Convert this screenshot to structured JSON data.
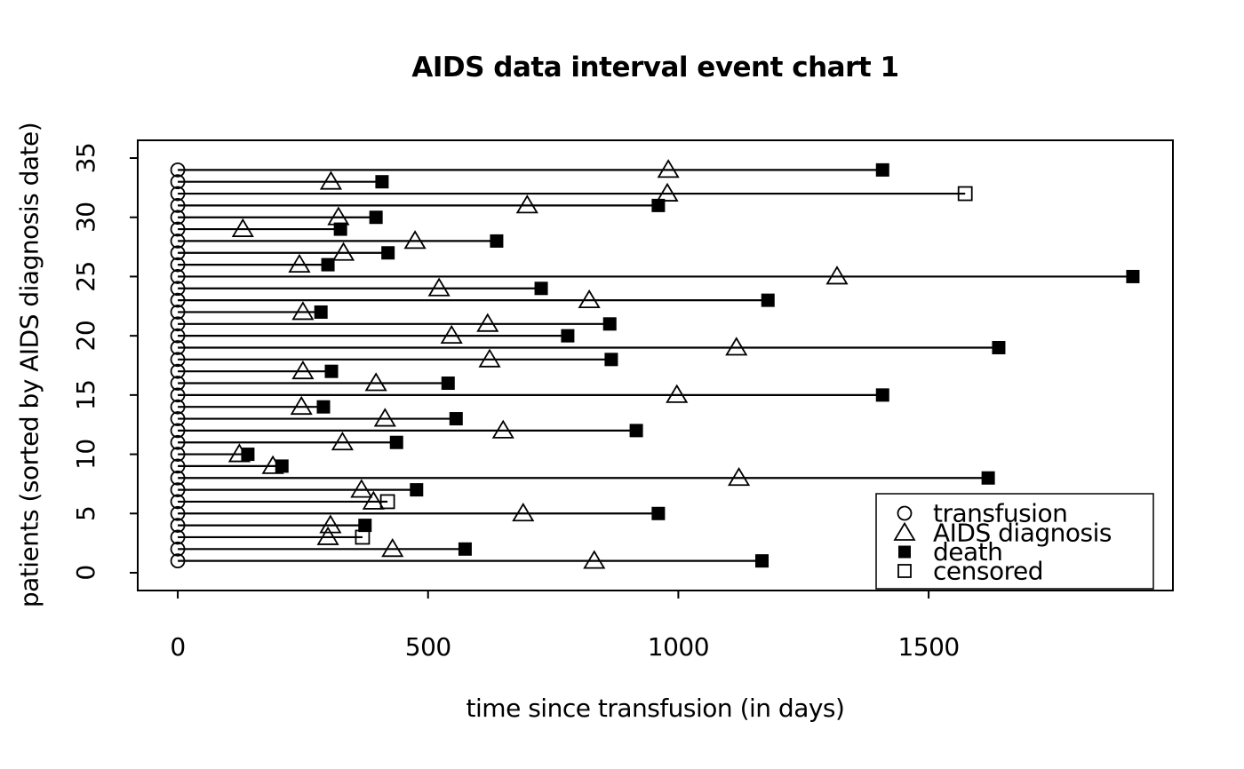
{
  "title": "AIDS data interval event chart 1",
  "axes": {
    "x_label": "time since transfusion (in days)",
    "y_label": "patients (sorted by AIDS diagnosis date)",
    "x_ticks": [
      0,
      500,
      1000,
      1500
    ],
    "y_ticks": [
      0,
      5,
      10,
      15,
      20,
      25,
      30,
      35
    ]
  },
  "legend": {
    "position": "bottom-right-inside",
    "items": [
      {
        "marker": "open-circle",
        "label": "transfusion"
      },
      {
        "marker": "open-triangle",
        "label": "AIDS diagnosis"
      },
      {
        "marker": "filled-square",
        "label": "death"
      },
      {
        "marker": "open-square",
        "label": "censored"
      }
    ]
  },
  "chart_data": {
    "type": "interval-event",
    "title": "AIDS data interval event chart 1",
    "xlabel": "time since transfusion (in days)",
    "ylabel": "patients (sorted by AIDS diagnosis date)",
    "x_range_days": [
      -80,
      1988
    ],
    "y_range": [
      -1.5,
      36.5
    ],
    "grid": false,
    "event_types": {
      "start": "transfusion",
      "middle": "AIDS diagnosis",
      "end_death": "death",
      "end_censored": "censored"
    },
    "patients": [
      {
        "id": 1,
        "transfusion": 0,
        "aids_diagnosis": 832,
        "end": 1167,
        "end_type": "death"
      },
      {
        "id": 2,
        "transfusion": 0,
        "aids_diagnosis": 429,
        "end": 574,
        "end_type": "death"
      },
      {
        "id": 3,
        "transfusion": 0,
        "aids_diagnosis": 300,
        "end": 369,
        "end_type": "censored"
      },
      {
        "id": 4,
        "transfusion": 0,
        "aids_diagnosis": 305,
        "end": 374,
        "end_type": "death"
      },
      {
        "id": 5,
        "transfusion": 0,
        "aids_diagnosis": 690,
        "end": 960,
        "end_type": "death"
      },
      {
        "id": 6,
        "transfusion": 0,
        "aids_diagnosis": 391,
        "end": 419,
        "end_type": "censored"
      },
      {
        "id": 7,
        "transfusion": 0,
        "aids_diagnosis": 367,
        "end": 477,
        "end_type": "death"
      },
      {
        "id": 8,
        "transfusion": 0,
        "aids_diagnosis": 1121,
        "end": 1619,
        "end_type": "death"
      },
      {
        "id": 9,
        "transfusion": 0,
        "aids_diagnosis": 190,
        "end": 208,
        "end_type": "death"
      },
      {
        "id": 10,
        "transfusion": 0,
        "aids_diagnosis": 123,
        "end": 140,
        "end_type": "death"
      },
      {
        "id": 11,
        "transfusion": 0,
        "aids_diagnosis": 329,
        "end": 437,
        "end_type": "death"
      },
      {
        "id": 12,
        "transfusion": 0,
        "aids_diagnosis": 650,
        "end": 916,
        "end_type": "death"
      },
      {
        "id": 13,
        "transfusion": 0,
        "aids_diagnosis": 414,
        "end": 556,
        "end_type": "death"
      },
      {
        "id": 14,
        "transfusion": 0,
        "aids_diagnosis": 247,
        "end": 291,
        "end_type": "death"
      },
      {
        "id": 15,
        "transfusion": 0,
        "aids_diagnosis": 997,
        "end": 1408,
        "end_type": "death"
      },
      {
        "id": 16,
        "transfusion": 0,
        "aids_diagnosis": 396,
        "end": 540,
        "end_type": "death"
      },
      {
        "id": 17,
        "transfusion": 0,
        "aids_diagnosis": 250,
        "end": 307,
        "end_type": "death"
      },
      {
        "id": 18,
        "transfusion": 0,
        "aids_diagnosis": 623,
        "end": 866,
        "end_type": "death"
      },
      {
        "id": 19,
        "transfusion": 0,
        "aids_diagnosis": 1116,
        "end": 1640,
        "end_type": "death"
      },
      {
        "id": 20,
        "transfusion": 0,
        "aids_diagnosis": 547,
        "end": 779,
        "end_type": "death"
      },
      {
        "id": 21,
        "transfusion": 0,
        "aids_diagnosis": 619,
        "end": 863,
        "end_type": "death"
      },
      {
        "id": 22,
        "transfusion": 0,
        "aids_diagnosis": 250,
        "end": 286,
        "end_type": "death"
      },
      {
        "id": 23,
        "transfusion": 0,
        "aids_diagnosis": 822,
        "end": 1179,
        "end_type": "death"
      },
      {
        "id": 24,
        "transfusion": 0,
        "aids_diagnosis": 522,
        "end": 726,
        "end_type": "death"
      },
      {
        "id": 25,
        "transfusion": 0,
        "aids_diagnosis": 1317,
        "end": 1908,
        "end_type": "death"
      },
      {
        "id": 26,
        "transfusion": 0,
        "aids_diagnosis": 243,
        "end": 300,
        "end_type": "death"
      },
      {
        "id": 27,
        "transfusion": 0,
        "aids_diagnosis": 331,
        "end": 420,
        "end_type": "death"
      },
      {
        "id": 28,
        "transfusion": 0,
        "aids_diagnosis": 474,
        "end": 637,
        "end_type": "death"
      },
      {
        "id": 29,
        "transfusion": 0,
        "aids_diagnosis": 130,
        "end": 325,
        "end_type": "death"
      },
      {
        "id": 30,
        "transfusion": 0,
        "aids_diagnosis": 321,
        "end": 396,
        "end_type": "death"
      },
      {
        "id": 31,
        "transfusion": 0,
        "aids_diagnosis": 698,
        "end": 960,
        "end_type": "death"
      },
      {
        "id": 32,
        "transfusion": 0,
        "aids_diagnosis": 978,
        "end": 1573,
        "end_type": "censored"
      },
      {
        "id": 33,
        "transfusion": 0,
        "aids_diagnosis": 306,
        "end": 408,
        "end_type": "death"
      },
      {
        "id": 34,
        "transfusion": 0,
        "aids_diagnosis": 980,
        "end": 1408,
        "end_type": "death"
      }
    ]
  },
  "colors": {
    "foreground": "#000000",
    "background": "#ffffff"
  }
}
